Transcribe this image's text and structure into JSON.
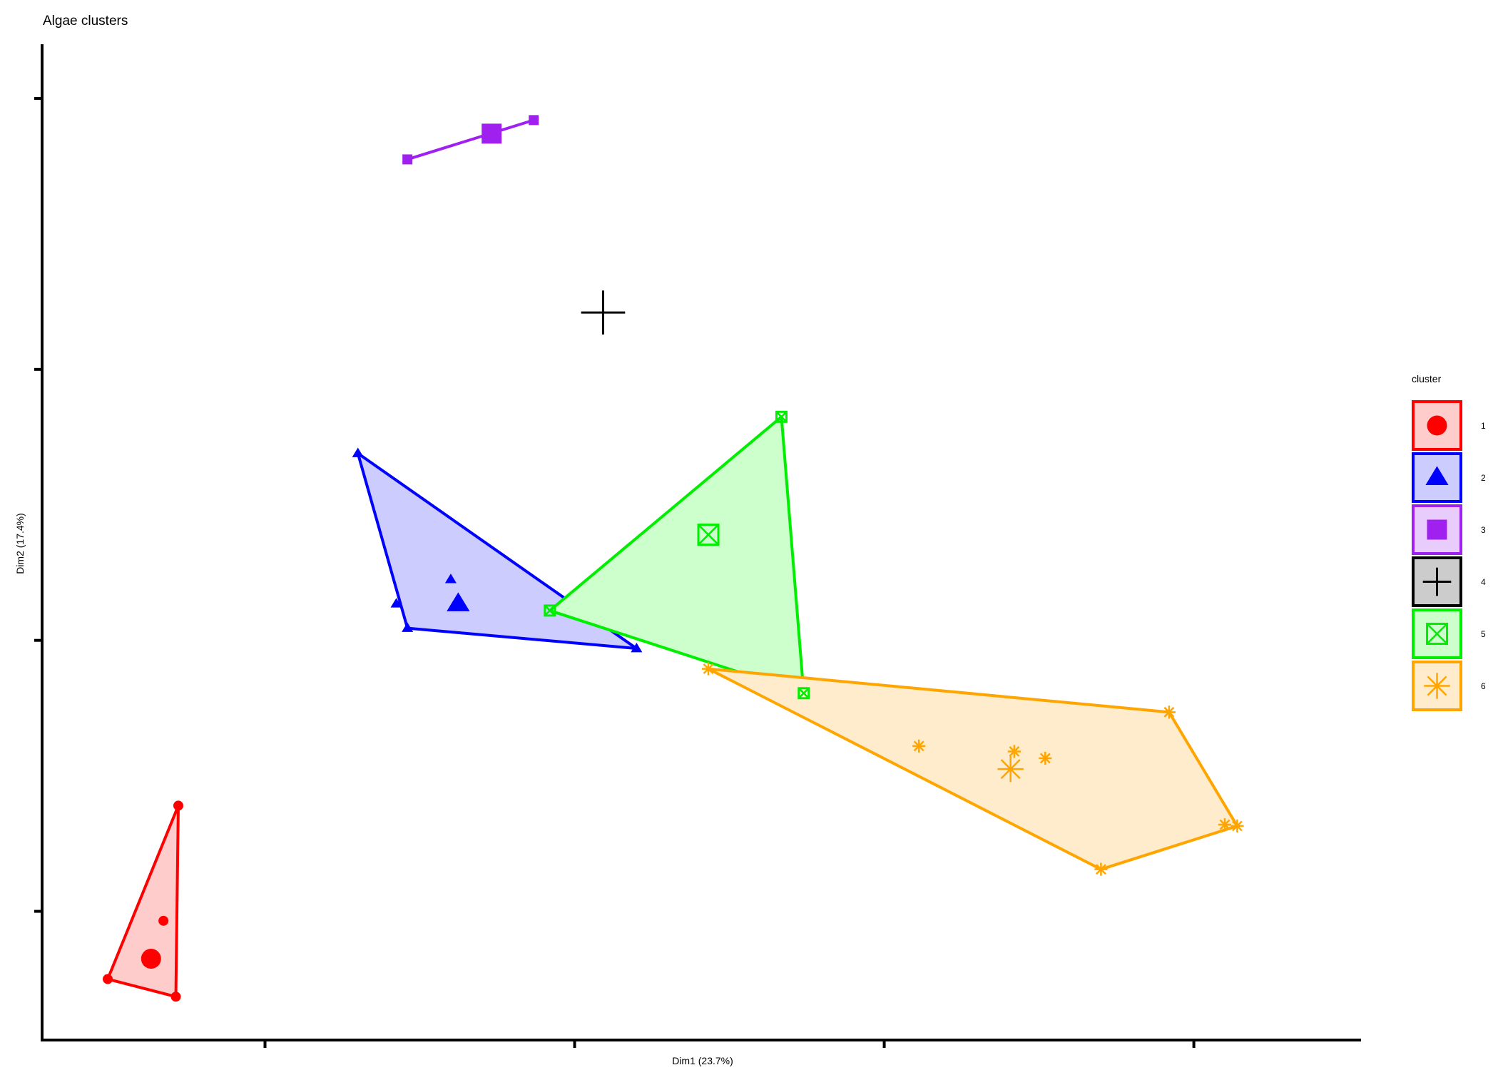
{
  "chart_data": {
    "type": "scatter",
    "title": "Algae clusters",
    "xlabel": "Dim1 (23.7%)",
    "ylabel": "Dim2 (17.4%)",
    "xlim": [
      -4.3,
      6.35
    ],
    "ylim": [
      -2.95,
      4.4
    ],
    "x_ticks": [
      -2.5,
      0,
      2.5,
      5
    ],
    "y_ticks": [
      -2,
      0,
      2,
      4
    ],
    "grid": false,
    "legend": {
      "title": "cluster",
      "position": "right"
    },
    "clusters": [
      {
        "name": "1",
        "color": "#ff0000",
        "fill": "#ffcccc",
        "shape": "circle",
        "points": [
          [
            -3.2,
            -1.22
          ],
          [
            -3.22,
            -2.63
          ],
          [
            -3.77,
            -2.5
          ],
          [
            -3.32,
            -2.07
          ]
        ],
        "hull": [
          [
            -3.2,
            -1.22
          ],
          [
            -3.22,
            -2.63
          ],
          [
            -3.77,
            -2.5
          ]
        ],
        "center": [
          -3.42,
          -2.35
        ]
      },
      {
        "name": "2",
        "color": "#0000ff",
        "fill": "#ccccff",
        "shape": "triangle",
        "points": [
          [
            -1.75,
            1.38
          ],
          [
            -1.35,
            0.09
          ],
          [
            0.5,
            -0.06
          ],
          [
            -1.0,
            0.45
          ],
          [
            -1.44,
            0.27
          ]
        ],
        "hull": [
          [
            -1.75,
            1.38
          ],
          [
            0.5,
            -0.06
          ],
          [
            -1.35,
            0.09
          ]
        ],
        "center": [
          -0.94,
          0.27
        ]
      },
      {
        "name": "3",
        "color": "#a020f0",
        "fill": "#e8ccfc",
        "shape": "square",
        "points": [
          [
            -1.35,
            3.55
          ],
          [
            -0.33,
            3.84
          ]
        ],
        "hull": [
          [
            -1.35,
            3.55
          ],
          [
            -0.33,
            3.84
          ]
        ],
        "center": [
          -0.67,
          3.74
        ]
      },
      {
        "name": "4",
        "color": "#000000",
        "fill": "#cccccc",
        "shape": "cross",
        "points": [],
        "hull": [],
        "center": [
          0.23,
          2.42
        ]
      },
      {
        "name": "5",
        "color": "#00ee00",
        "fill": "#ccffcc",
        "shape": "square-x",
        "points": [
          [
            1.67,
            1.65
          ],
          [
            -0.2,
            0.22
          ],
          [
            1.85,
            -0.39
          ]
        ],
        "hull": [
          [
            1.67,
            1.65
          ],
          [
            1.85,
            -0.39
          ],
          [
            -0.2,
            0.22
          ]
        ],
        "center": [
          1.08,
          0.78
        ]
      },
      {
        "name": "6",
        "color": "#ffa500",
        "fill": "#ffeccc",
        "shape": "asterisk",
        "points": [
          [
            1.08,
            -0.21
          ],
          [
            4.8,
            -0.53
          ],
          [
            5.35,
            -1.37
          ],
          [
            4.25,
            -1.69
          ],
          [
            5.25,
            -1.36
          ],
          [
            2.78,
            -0.78
          ],
          [
            3.55,
            -0.82
          ],
          [
            3.8,
            -0.87
          ]
        ],
        "hull": [
          [
            1.08,
            -0.21
          ],
          [
            4.8,
            -0.53
          ],
          [
            5.35,
            -1.37
          ],
          [
            4.25,
            -1.69
          ]
        ],
        "center": [
          3.52,
          -0.95
        ]
      }
    ]
  }
}
